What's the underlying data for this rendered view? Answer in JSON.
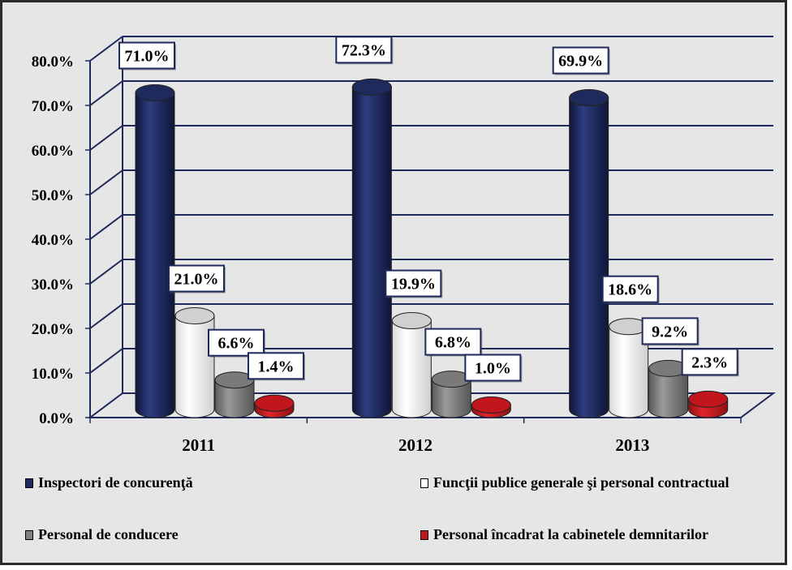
{
  "chart_data": {
    "type": "bar",
    "categories": [
      "2011",
      "2012",
      "2013"
    ],
    "series": [
      {
        "name": "Inspectori de concurenţă",
        "values": [
          71.0,
          72.3,
          69.9
        ],
        "labels": [
          "71.0%",
          "72.3%",
          "69.9%"
        ],
        "color": "#1f2a5c"
      },
      {
        "name": "Funcţii publice generale şi personal contractual",
        "values": [
          21.0,
          19.9,
          18.6
        ],
        "labels": [
          "21.0%",
          "19.9%",
          "18.6%"
        ],
        "color": "#ffffff"
      },
      {
        "name": "Personal de conducere",
        "values": [
          6.6,
          6.8,
          9.2
        ],
        "labels": [
          "6.6%",
          "6.8%",
          "9.2%"
        ],
        "color": "#7f7f7f"
      },
      {
        "name": "Personal încadrat la cabinetele demnitarilor",
        "values": [
          1.4,
          1.0,
          2.3
        ],
        "labels": [
          "1.4%",
          "1.0%",
          "2.3%"
        ],
        "color": "#c0161c"
      }
    ],
    "y_ticks": [
      "0.0%",
      "10.0%",
      "20.0%",
      "30.0%",
      "40.0%",
      "50.0%",
      "60.0%",
      "70.0%",
      "80.0%"
    ],
    "ylim": [
      0,
      80
    ],
    "grid": true,
    "legend_position": "bottom",
    "title": "",
    "xlabel": "",
    "ylabel": "",
    "style": "3d-cylinder"
  }
}
